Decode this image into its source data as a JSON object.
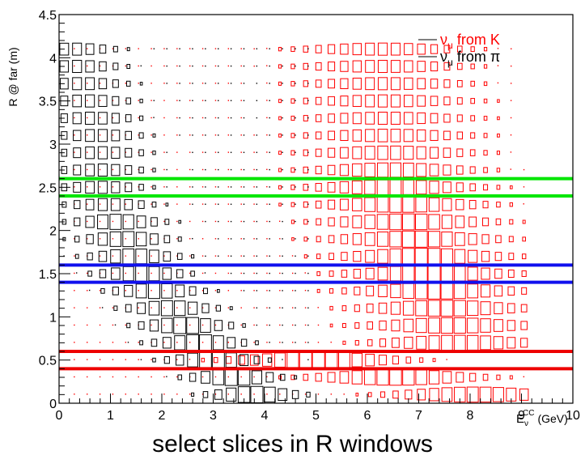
{
  "caption": "select slices in R windows",
  "chart_data": {
    "type": "box-histogram-2d",
    "title": "",
    "xlabel_main": "E",
    "xlabel_sub": "ν",
    "xlabel_sup": "CC",
    "xlabel_unit": "(GeV)",
    "ylabel": "R @ far (m)",
    "xlim": [
      0,
      10
    ],
    "ylim": [
      0,
      4.5
    ],
    "x_ticks": [
      0,
      1,
      2,
      3,
      4,
      5,
      6,
      7,
      8,
      9,
      10
    ],
    "y_ticks": [
      0,
      0.5,
      1,
      1.5,
      2,
      2.5,
      3,
      3.5,
      4,
      4.5
    ],
    "y_tick_labels": [
      "0",
      "0.5",
      "1",
      "1.5",
      "2",
      "2.5",
      "3",
      "3.5",
      "4",
      "4.5"
    ],
    "bin_width_x": 0.25,
    "bin_height_y": 0.1,
    "legend": [
      {
        "base": "ν",
        "sub": "μ",
        "rest": " from K",
        "color": "#ff0000"
      },
      {
        "base": "ν",
        "sub": "μ",
        "rest": " from π",
        "color": "#000000"
      }
    ],
    "series": [
      {
        "name": "νμ from K",
        "color": "#ff0000",
        "ridge": [
          [
            0.5,
            5.0
          ],
          [
            4.0,
            6.3
          ],
          [
            2.5,
            6.5
          ],
          [
            1.5,
            7.2
          ],
          [
            0.5,
            7.9
          ],
          [
            0.1,
            8.1
          ]
        ],
        "ridge_width": 1.6,
        "x_range": [
          0.3,
          9.2
        ]
      },
      {
        "name": "νμ from π",
        "color": "#000000",
        "ridge": [
          [
            4.2,
            0.2
          ],
          [
            3.0,
            0.8
          ],
          [
            2.5,
            0.8
          ],
          [
            1.5,
            1.6
          ],
          [
            1.0,
            2.3
          ],
          [
            0.5,
            3.0
          ],
          [
            0.1,
            3.8
          ]
        ],
        "ridge_width": 0.85,
        "x_range": [
          0.1,
          5.0
        ]
      }
    ],
    "windows": [
      {
        "label": "green",
        "color": "#00e600",
        "y": [
          2.4,
          2.6
        ]
      },
      {
        "label": "blue",
        "color": "#1010ee",
        "y": [
          1.4,
          1.6
        ]
      },
      {
        "label": "red",
        "color": "#ee0000",
        "y": [
          0.4,
          0.6
        ]
      }
    ]
  }
}
